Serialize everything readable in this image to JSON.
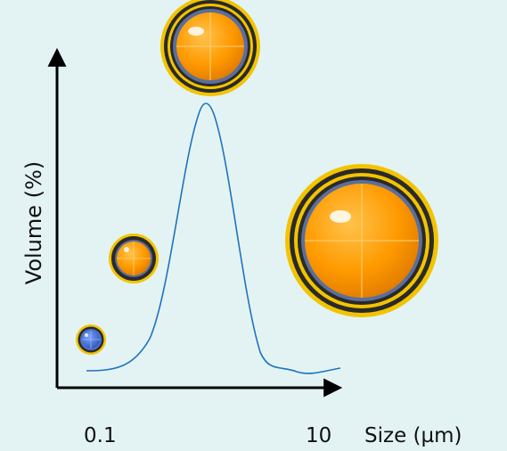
{
  "background": "#e3f3f4",
  "axes": {
    "y_label": "Volume (%)",
    "x_label": "Size (µm)",
    "x_tick_low": "0.1",
    "x_tick_high": "10",
    "axis_color": "#000000"
  },
  "curve": {
    "color": "#1e73be",
    "shape": "single-peak distribution"
  },
  "particles": {
    "core_color_orange": "#ff9a00",
    "core_color_blue": "#3f6fd0",
    "shell_color_dark": "#2a2a2a",
    "shell_color_gold": "#f2c400",
    "items": [
      {
        "name": "small-blue-droplet",
        "core": "blue"
      },
      {
        "name": "small-orange-droplet",
        "core": "orange"
      },
      {
        "name": "medium-orange-droplet",
        "core": "orange"
      },
      {
        "name": "large-orange-droplet",
        "core": "orange"
      }
    ]
  }
}
